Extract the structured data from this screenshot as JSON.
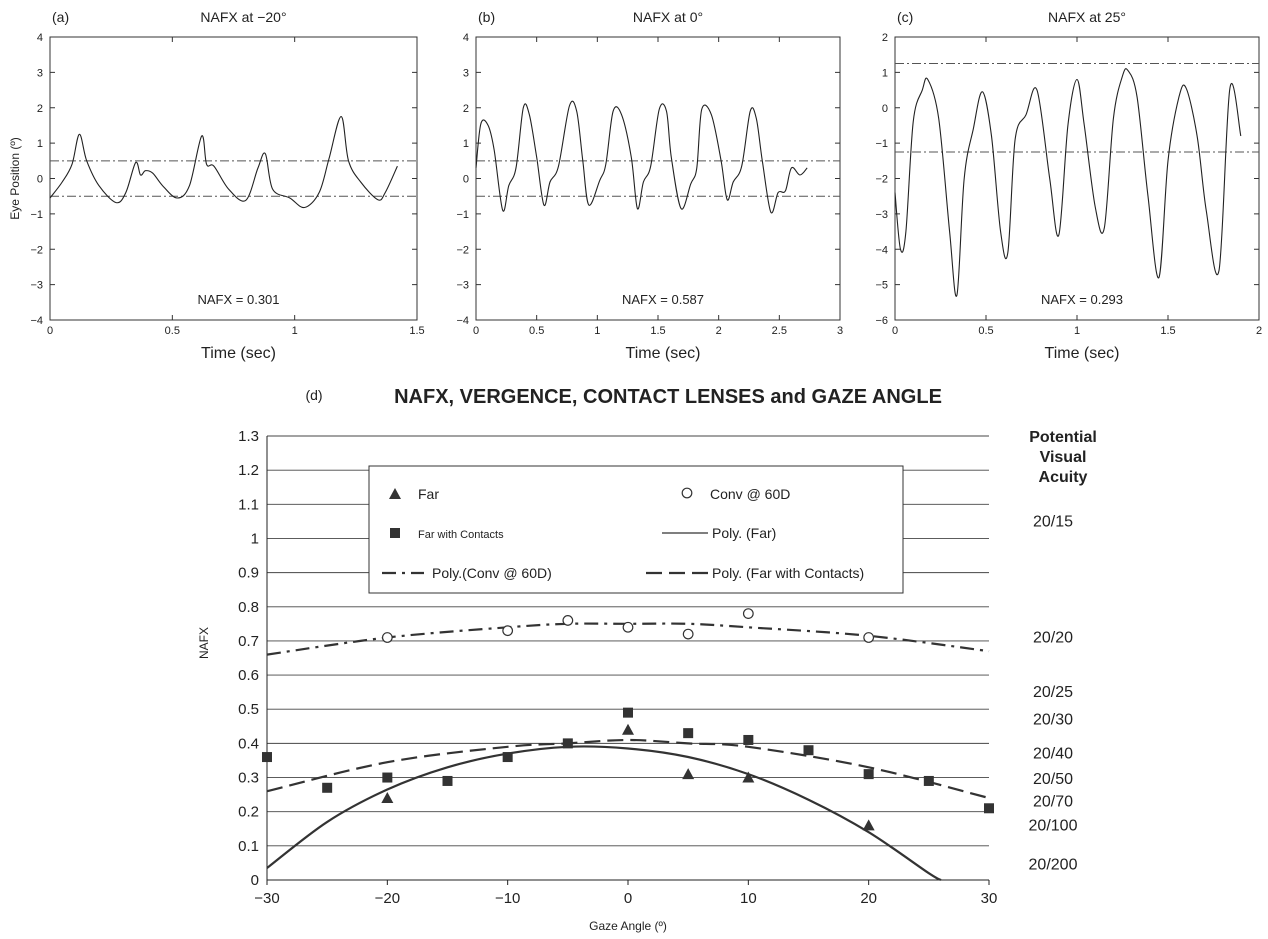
{
  "panels": [
    {
      "id": "a",
      "tag": "(a)",
      "title": "NAFX at −20°",
      "xlabel": "Time (sec)",
      "ylabel": "Eye Position (º)",
      "annotation": "NAFX = 0.301",
      "xlim": [
        0,
        1.5
      ],
      "ylim": [
        -4,
        4
      ],
      "xticks": [
        0,
        0.5,
        1,
        1.5
      ],
      "xtick_labels": [
        "0",
        "0.5",
        "1",
        "1.5"
      ],
      "yticks": [
        -4,
        -3,
        -2,
        -1,
        0,
        1,
        2,
        3,
        4
      ],
      "ytick_labels": [
        "−4",
        "−3",
        "−2",
        "−1",
        "0",
        "1",
        "2",
        "3",
        "4"
      ],
      "hlines": [
        0.5,
        -0.5
      ]
    },
    {
      "id": "b",
      "tag": "(b)",
      "title": "NAFX at 0°",
      "xlabel": "Time (sec)",
      "ylabel": "",
      "annotation": "NAFX = 0.587",
      "xlim": [
        0,
        3
      ],
      "ylim": [
        -4,
        4
      ],
      "xticks": [
        0,
        0.5,
        1,
        1.5,
        2,
        2.5,
        3
      ],
      "xtick_labels": [
        "0",
        "0.5",
        "1",
        "1.5",
        "2",
        "2.5",
        "3"
      ],
      "yticks": [
        -4,
        -3,
        -2,
        -1,
        0,
        1,
        2,
        3,
        4
      ],
      "ytick_labels": [
        "−4",
        "−3",
        "−2",
        "−1",
        "0",
        "1",
        "2",
        "3",
        "4"
      ],
      "hlines": [
        0.5,
        -0.5
      ]
    },
    {
      "id": "c",
      "tag": "(c)",
      "title": "NAFX at 25°",
      "xlabel": "Time (sec)",
      "ylabel": "",
      "annotation": "NAFX = 0.293",
      "xlim": [
        0,
        2
      ],
      "ylim": [
        -6,
        2
      ],
      "xticks": [
        0,
        0.5,
        1,
        1.5,
        2
      ],
      "xtick_labels": [
        "0",
        "0.5",
        "1",
        "1.5",
        "2"
      ],
      "yticks": [
        -6,
        -5,
        -4,
        -3,
        -2,
        -1,
        0,
        1,
        2
      ],
      "ytick_labels": [
        "−6",
        "−5",
        "−4",
        "−3",
        "−2",
        "−1",
        "0",
        "1",
        "2"
      ],
      "hlines": [
        1.25,
        -1.25
      ]
    }
  ],
  "chart_data": [
    {
      "type": "line",
      "panel": "a",
      "title": "NAFX at −20°",
      "xlabel": "Time (sec)",
      "ylabel": "Eye Position (º)",
      "xlim": [
        0,
        1.5
      ],
      "ylim": [
        -4,
        4
      ],
      "grid": false,
      "reference_lines": [
        0.5,
        -0.5
      ],
      "series": [
        {
          "x": [
            0,
            0.05,
            0.09,
            0.12,
            0.15,
            0.2,
            0.27,
            0.31,
            0.35,
            0.37,
            0.39,
            0.42,
            0.46,
            0.52,
            0.57,
            0.62,
            0.64,
            0.67,
            0.73,
            0.8,
            0.85,
            0.88,
            0.91,
            0.98,
            1.04,
            1.1,
            1.14,
            1.19,
            1.22,
            1.27,
            1.34,
            1.37,
            1.42
          ],
          "values": [
            -0.55,
            -0.1,
            0.4,
            1.25,
            0.5,
            -0.2,
            -0.68,
            -0.4,
            0.45,
            0.1,
            0.22,
            0.15,
            -0.2,
            -0.55,
            -0.2,
            1.2,
            0.4,
            0.35,
            -0.3,
            -0.62,
            0.3,
            0.7,
            -0.3,
            -0.55,
            -0.82,
            -0.4,
            0.55,
            1.75,
            0.5,
            -0.1,
            -0.6,
            -0.4,
            0.35
          ]
        }
      ]
    },
    {
      "type": "line",
      "panel": "b",
      "title": "NAFX at 0°",
      "xlabel": "Time (sec)",
      "ylabel": "",
      "xlim": [
        0,
        3
      ],
      "ylim": [
        -4,
        4
      ],
      "grid": false,
      "reference_lines": [
        0.5,
        -0.5
      ],
      "series": [
        {
          "x": [
            0,
            0.04,
            0.1,
            0.15,
            0.22,
            0.27,
            0.33,
            0.39,
            0.44,
            0.5,
            0.56,
            0.61,
            0.68,
            0.77,
            0.83,
            0.88,
            0.93,
            1.02,
            1.07,
            1.13,
            1.2,
            1.28,
            1.33,
            1.38,
            1.44,
            1.51,
            1.57,
            1.61,
            1.69,
            1.77,
            1.82,
            1.86,
            1.94,
            2.02,
            2.07,
            2.12,
            2.19,
            2.26,
            2.31,
            2.36,
            2.43,
            2.49,
            2.55,
            2.6,
            2.67,
            2.73
          ],
          "values": [
            0.3,
            1.55,
            1.5,
            0.8,
            -0.9,
            -0.2,
            0.3,
            2.0,
            1.8,
            0.6,
            -0.75,
            -0.1,
            0.35,
            2.05,
            1.9,
            0.5,
            -0.75,
            -0.05,
            0.4,
            1.9,
            1.8,
            0.6,
            -0.85,
            -0.1,
            0.35,
            1.95,
            1.9,
            0.6,
            -0.85,
            -0.15,
            0.3,
            1.95,
            1.8,
            0.5,
            -0.6,
            -0.1,
            0.35,
            1.9,
            1.7,
            0.5,
            -0.95,
            -0.4,
            -0.35,
            0.3,
            0.1,
            0.3
          ]
        }
      ]
    },
    {
      "type": "line",
      "panel": "c",
      "title": "NAFX at 25°",
      "xlabel": "Time (sec)",
      "ylabel": "",
      "xlim": [
        0,
        2
      ],
      "ylim": [
        -6,
        2
      ],
      "grid": false,
      "reference_lines": [
        1.25,
        -1.25
      ],
      "series": [
        {
          "x": [
            0,
            0.03,
            0.06,
            0.1,
            0.15,
            0.18,
            0.24,
            0.3,
            0.34,
            0.38,
            0.43,
            0.48,
            0.53,
            0.58,
            0.62,
            0.66,
            0.72,
            0.78,
            0.85,
            0.9,
            0.95,
            1.0,
            1.04,
            1.1,
            1.15,
            1.2,
            1.25,
            1.28,
            1.33,
            1.39,
            1.45,
            1.5,
            1.56,
            1.6,
            1.66,
            1.71,
            1.78,
            1.84,
            1.9
          ],
          "values": [
            -2.4,
            -4.0,
            -3.5,
            -0.4,
            0.5,
            0.8,
            -0.3,
            -3.5,
            -5.3,
            -2.0,
            -0.6,
            0.45,
            -0.8,
            -3.5,
            -4.1,
            -0.9,
            -0.2,
            0.5,
            -2.0,
            -3.6,
            -0.5,
            0.8,
            -0.5,
            -2.8,
            -3.4,
            -0.3,
            0.9,
            1.05,
            0.3,
            -2.5,
            -4.8,
            -1.5,
            0.3,
            0.55,
            -0.8,
            -2.9,
            -4.6,
            0.55,
            -0.8
          ]
        }
      ]
    },
    {
      "type": "scatter",
      "panel": "d",
      "title": "NAFX, VERGENCE, CONTACT LENSES and GAZE ANGLE",
      "xlabel": "Gaze Angle (º)",
      "ylabel": "NAFX",
      "xlim": [
        -30,
        30
      ],
      "ylim": [
        0,
        1.3
      ],
      "grid": true,
      "legend_position": "top",
      "series": [
        {
          "name": "Far",
          "marker": "triangle",
          "x": [
            -20,
            0,
            5,
            10,
            20
          ],
          "values": [
            0.24,
            0.44,
            0.31,
            0.3,
            0.16
          ]
        },
        {
          "name": "Conv @ 60D",
          "marker": "circle-open",
          "x": [
            -20,
            -10,
            -5,
            0,
            5,
            10,
            20
          ],
          "values": [
            0.71,
            0.73,
            0.76,
            0.74,
            0.72,
            0.78,
            0.71
          ]
        },
        {
          "name": "Far with Contacts",
          "marker": "square",
          "x": [
            -30,
            -25,
            -20,
            -15,
            -10,
            -5,
            0,
            5,
            10,
            15,
            20,
            25,
            30
          ],
          "values": [
            0.36,
            0.27,
            0.3,
            0.29,
            0.36,
            0.4,
            0.49,
            0.43,
            0.41,
            0.38,
            0.31,
            0.29,
            0.21
          ]
        },
        {
          "name": "Poly. (Far)",
          "line": "solid",
          "x": [
            -30,
            -25,
            -20,
            -15,
            -10,
            -5,
            0,
            5,
            10,
            15,
            20,
            25,
            26
          ],
          "values": [
            0.035,
            0.17,
            0.265,
            0.33,
            0.37,
            0.39,
            0.385,
            0.36,
            0.31,
            0.235,
            0.14,
            0.02,
            0.0
          ]
        },
        {
          "name": "Poly.(Conv @ 60D)",
          "line": "dash-dot",
          "x": [
            -30,
            -20,
            -10,
            -5,
            0,
            5,
            10,
            20,
            30
          ],
          "values": [
            0.66,
            0.71,
            0.74,
            0.75,
            0.75,
            0.75,
            0.74,
            0.715,
            0.67
          ]
        },
        {
          "name": "Poly. (Far with Contacts)",
          "line": "dashed",
          "x": [
            -30,
            -20,
            -10,
            -5,
            0,
            5,
            10,
            20,
            30
          ],
          "values": [
            0.26,
            0.345,
            0.39,
            0.4,
            0.41,
            0.4,
            0.39,
            0.33,
            0.24
          ]
        }
      ],
      "right_axis_labels": [
        {
          "value": 1.05,
          "label": "20/15"
        },
        {
          "value": 0.71,
          "label": "20/20"
        },
        {
          "value": 0.55,
          "label": "20/25"
        },
        {
          "value": 0.47,
          "label": "20/30"
        },
        {
          "value": 0.37,
          "label": "20/40"
        },
        {
          "value": 0.295,
          "label": "20/50"
        },
        {
          "value": 0.23,
          "label": "20/70"
        },
        {
          "value": 0.16,
          "label": "20/100"
        },
        {
          "value": 0.045,
          "label": "20/200"
        }
      ]
    }
  ],
  "panel_d": {
    "tag": "(d)",
    "title": "NAFX, VERGENCE, CONTACT LENSES and GAZE ANGLE",
    "xlabel": "Gaze Angle (º)",
    "ylabel": "NAFX",
    "xticks": [
      -30,
      -20,
      -10,
      0,
      10,
      20,
      30
    ],
    "xtick_labels": [
      "−30",
      "−20",
      "−10",
      "0",
      "10",
      "20",
      "30"
    ],
    "yticks": [
      0,
      0.1,
      0.2,
      0.3,
      0.4,
      0.5,
      0.6,
      0.7,
      0.8,
      0.9,
      1,
      1.1,
      1.2,
      1.3
    ],
    "ytick_labels": [
      "0",
      "0.1",
      "0.2",
      "0.3",
      "0.4",
      "0.5",
      "0.6",
      "0.7",
      "0.8",
      "0.9",
      "1",
      "1.1",
      "1.2",
      "1.3"
    ],
    "right_title_lines": [
      "Potential",
      "Visual",
      "Acuity"
    ],
    "legend": [
      "Far",
      "Conv @ 60D",
      "Far with Contacts",
      "Poly. (Far)",
      "Poly.(Conv @ 60D)",
      "Poly. (Far with Contacts)"
    ]
  }
}
